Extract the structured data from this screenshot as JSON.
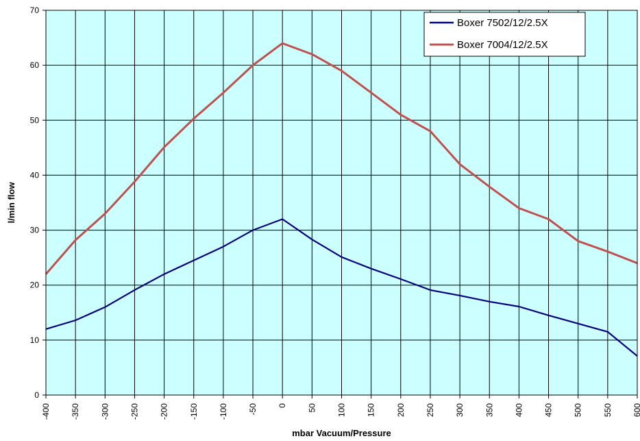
{
  "chart_data": {
    "type": "line",
    "xlabel": "mbar Vacuum/Pressure",
    "ylabel": "l/min flow",
    "xlim": [
      -400,
      600
    ],
    "ylim": [
      0,
      70
    ],
    "x_ticks": [
      -400,
      -350,
      -300,
      -250,
      -200,
      -150,
      -100,
      -50,
      0,
      50,
      100,
      150,
      200,
      250,
      300,
      350,
      400,
      450,
      500,
      550,
      600
    ],
    "y_ticks": [
      0,
      10,
      20,
      30,
      40,
      50,
      60,
      70
    ],
    "x": [
      -400,
      -350,
      -300,
      -250,
      -200,
      -150,
      -100,
      -50,
      0,
      50,
      100,
      150,
      200,
      250,
      300,
      350,
      400,
      450,
      500,
      550,
      600
    ],
    "grid": true,
    "legend_position": "top-right",
    "background_color": "#CCFFFF",
    "series": [
      {
        "name": "Boxer 7502/12/2.5X",
        "color": "#000080",
        "values": [
          12,
          13.6,
          16,
          19.1,
          22,
          24.5,
          27,
          30,
          32,
          28.3,
          25.1,
          23,
          21.1,
          19.1,
          18.1,
          17,
          16.1,
          14.5,
          13,
          11.5,
          7.1
        ]
      },
      {
        "name": "Boxer 7004/12/2.5X",
        "color": "#C0504D",
        "values": [
          22,
          28.2,
          33,
          38.8,
          45.1,
          50.3,
          55,
          60,
          64,
          62,
          59,
          55,
          51,
          48,
          42,
          37.9,
          34,
          32,
          28,
          26.1,
          24
        ]
      }
    ]
  }
}
